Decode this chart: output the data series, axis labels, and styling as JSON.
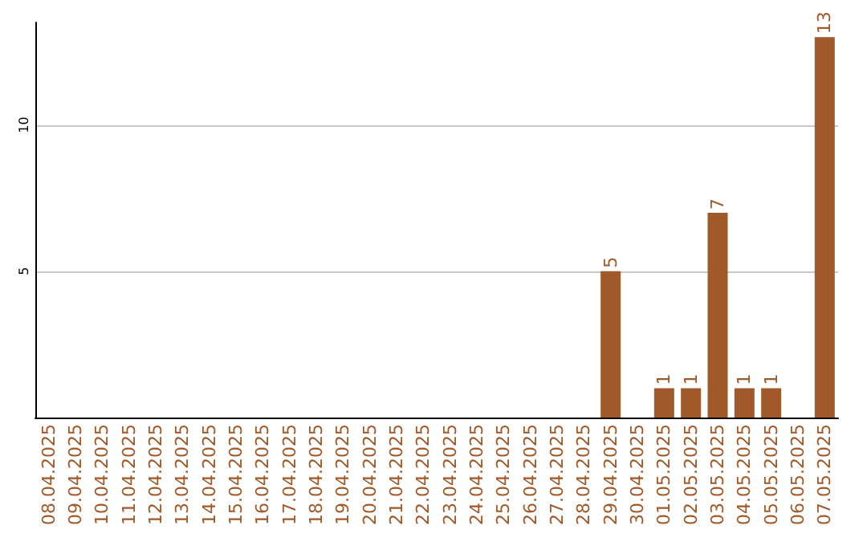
{
  "chart_data": {
    "type": "bar",
    "categories": [
      "08.04.2025",
      "09.04.2025",
      "10.04.2025",
      "11.04.2025",
      "12.04.2025",
      "13.04.2025",
      "14.04.2025",
      "15.04.2025",
      "16.04.2025",
      "17.04.2025",
      "18.04.2025",
      "19.04.2025",
      "20.04.2025",
      "21.04.2025",
      "22.04.2025",
      "23.04.2025",
      "24.04.2025",
      "25.04.2025",
      "26.04.2025",
      "27.04.2025",
      "28.04.2025",
      "29.04.2025",
      "30.04.2025",
      "01.05.2025",
      "02.05.2025",
      "03.05.2025",
      "04.05.2025",
      "05.05.2025",
      "06.05.2025",
      "07.05.2025"
    ],
    "values": [
      0,
      0,
      0,
      0,
      0,
      0,
      0,
      0,
      0,
      0,
      0,
      0,
      0,
      0,
      0,
      0,
      0,
      0,
      0,
      0,
      0,
      5,
      0,
      1,
      1,
      7,
      1,
      1,
      0,
      13
    ],
    "value_labels": [
      null,
      null,
      null,
      null,
      null,
      null,
      null,
      null,
      null,
      null,
      null,
      null,
      null,
      null,
      null,
      null,
      null,
      null,
      null,
      null,
      null,
      "5",
      null,
      "1",
      "1",
      "7",
      "1",
      "1",
      null,
      "13"
    ],
    "color": "#a0592a",
    "ylim": [
      0,
      13.5
    ],
    "yticks": [
      5,
      10
    ],
    "grid": "y"
  }
}
